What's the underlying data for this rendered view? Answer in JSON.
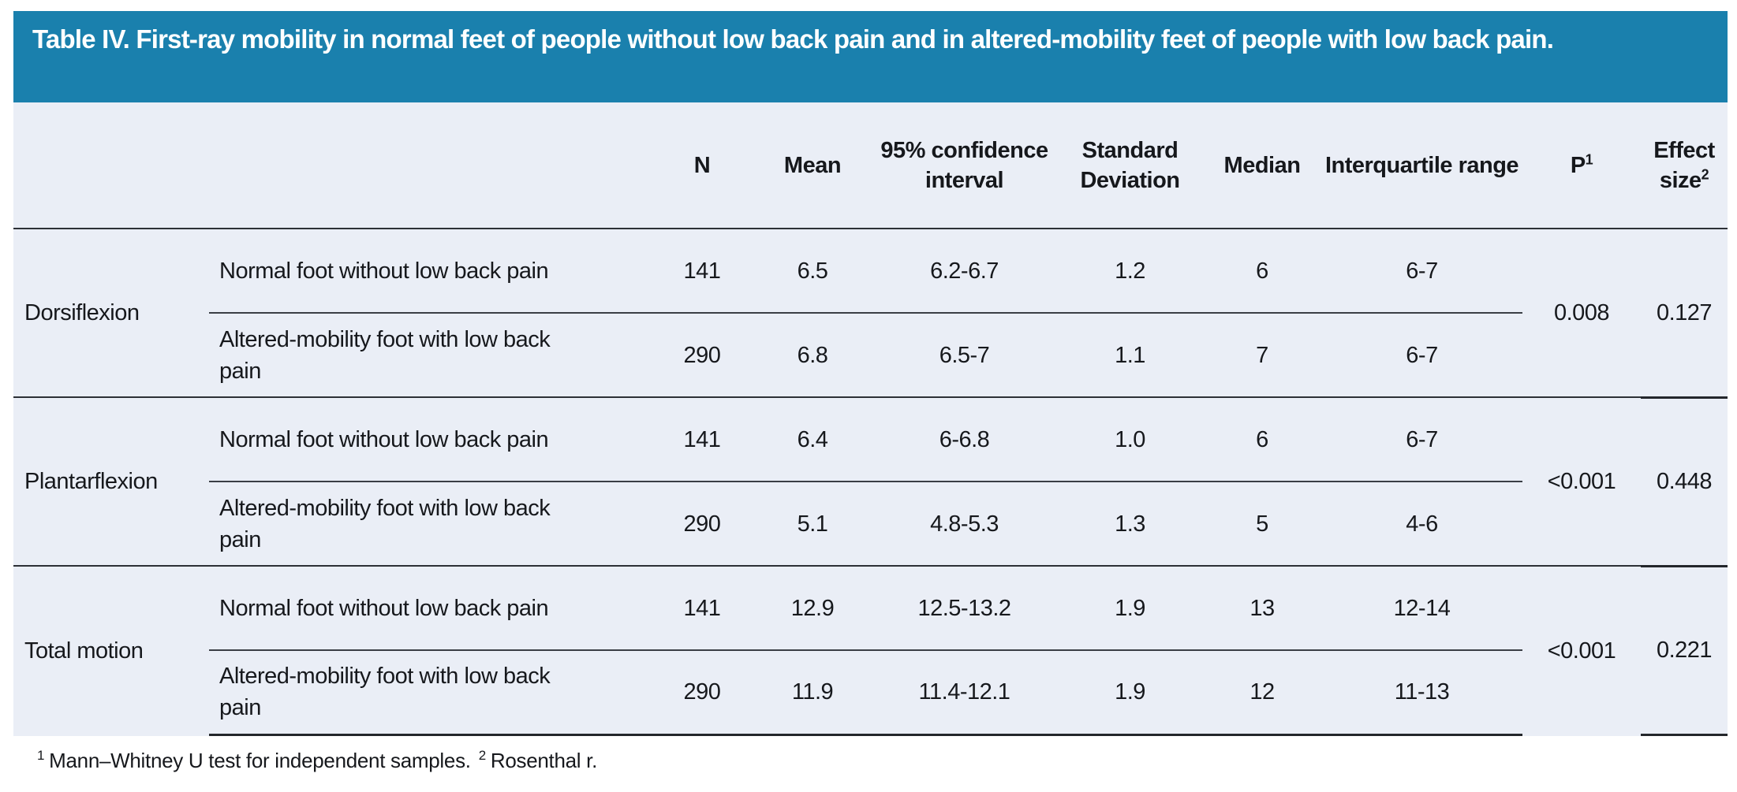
{
  "title": "Table IV. First-ray mobility in normal feet of people without low back pain and in altered-mobility feet of people with low back pain.",
  "colors": {
    "title_bar_bg": "#1a80ad",
    "title_text": "#ffffff",
    "table_body_bg": "#eaeef6",
    "rule_dark": "#2c3036",
    "rule_light": "#3a3e45"
  },
  "columns": {
    "n": "N",
    "mean": "Mean",
    "ci": "95% confidence interval",
    "sd": "Standard Deviation",
    "median": "Median",
    "iqr": "Interquartile range",
    "p_label": "P",
    "p_sup": "1",
    "effect_label": "Effect size",
    "effect_sup": "2"
  },
  "groups": [
    {
      "label": "Dorsiflexion",
      "p": "0.008",
      "effect_size": "0.127",
      "rows": [
        {
          "label": "Normal foot without low back pain",
          "n": "141",
          "mean": "6.5",
          "ci": "6.2-6.7",
          "sd": "1.2",
          "median": "6",
          "iqr": "6-7"
        },
        {
          "label": "Altered-mobility foot with low back pain",
          "n": "290",
          "mean": "6.8",
          "ci": "6.5-7",
          "sd": "1.1",
          "median": "7",
          "iqr": "6-7"
        }
      ]
    },
    {
      "label": "Plantarflexion",
      "p": "<0.001",
      "effect_size": "0.448",
      "rows": [
        {
          "label": "Normal foot without low back pain",
          "n": "141",
          "mean": "6.4",
          "ci": "6-6.8",
          "sd": "1.0",
          "median": "6",
          "iqr": "6-7"
        },
        {
          "label": "Altered-mobility foot with low back pain",
          "n": "290",
          "mean": "5.1",
          "ci": "4.8-5.3",
          "sd": "1.3",
          "median": "5",
          "iqr": "4-6"
        }
      ]
    },
    {
      "label": "Total motion",
      "p": "<0.001",
      "effect_size": "0.221",
      "rows": [
        {
          "label": "Normal foot without low back pain",
          "n": "141",
          "mean": "12.9",
          "ci": "12.5-13.2",
          "sd": "1.9",
          "median": "13",
          "iqr": "12-14"
        },
        {
          "label": "Altered-mobility foot with low back pain",
          "n": "290",
          "mean": "11.9",
          "ci": "11.4-12.1",
          "sd": "1.9",
          "median": "12",
          "iqr": "11-13"
        }
      ]
    }
  ],
  "footnote": {
    "sup1": "1",
    "text1": "Mann–Whitney U test for independent samples.",
    "sup2": "2",
    "text2": "Rosenthal r."
  }
}
